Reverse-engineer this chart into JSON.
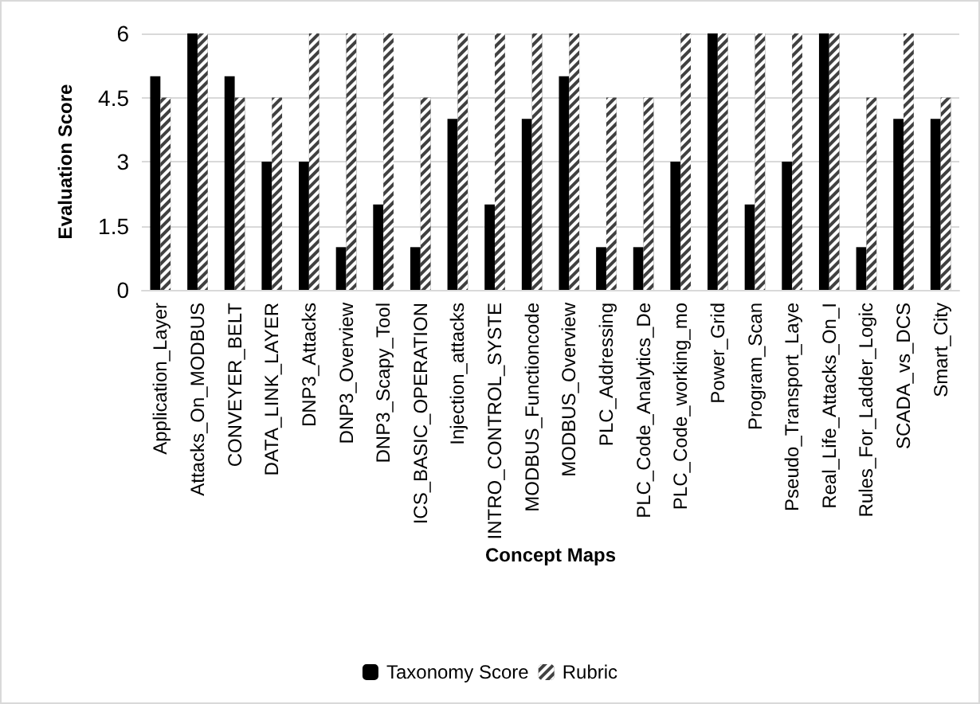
{
  "chart_data": {
    "type": "bar",
    "xlabel": "Concept Maps",
    "ylabel": "Evaluation Score",
    "categories": [
      "Application_Layer",
      "Attacks_On_MODBUS",
      "CONVEYER_BELT",
      "DATA_LINK_LAYER",
      "DNP3_Attacks",
      "DNP3_Overview",
      "DNP3_Scapy_Tool",
      "ICS_BASIC_OPERATION",
      "Injection_attacks",
      "INTRO_CONTROL_SYSTE",
      "MODBUS_Functioncode",
      "MODBUS_Overview",
      "PLC_Addressing",
      "PLC_Code_Analytics_De",
      "PLC_Code_working_mo",
      "Power_Grid",
      "Program_Scan",
      "Pseudo_Transport_Laye",
      "Real_Life_Attacks_On_I",
      "Rules_For_Ladder_Logic",
      "SCADA_vs_DCS",
      "Smart_City"
    ],
    "series": [
      {
        "name": "Taxonomy Score",
        "color": "#000000",
        "values": [
          5,
          6,
          5,
          3,
          3,
          1,
          2,
          1,
          4,
          2,
          4,
          5,
          1,
          1,
          3,
          6,
          2,
          3,
          6,
          1,
          4,
          4
        ]
      },
      {
        "name": "Rubric",
        "color": "#404040",
        "values": [
          4.5,
          6,
          4.5,
          4.5,
          6,
          6,
          6,
          4.5,
          6,
          6,
          6,
          6,
          4.5,
          4.5,
          6,
          6,
          6,
          6,
          6,
          4.5,
          6,
          4.5
        ]
      }
    ],
    "ylim": [
      0,
      6
    ],
    "yticks": [
      0,
      1.5,
      3,
      4.5,
      6
    ],
    "grid": "y",
    "legend": "bottom"
  }
}
